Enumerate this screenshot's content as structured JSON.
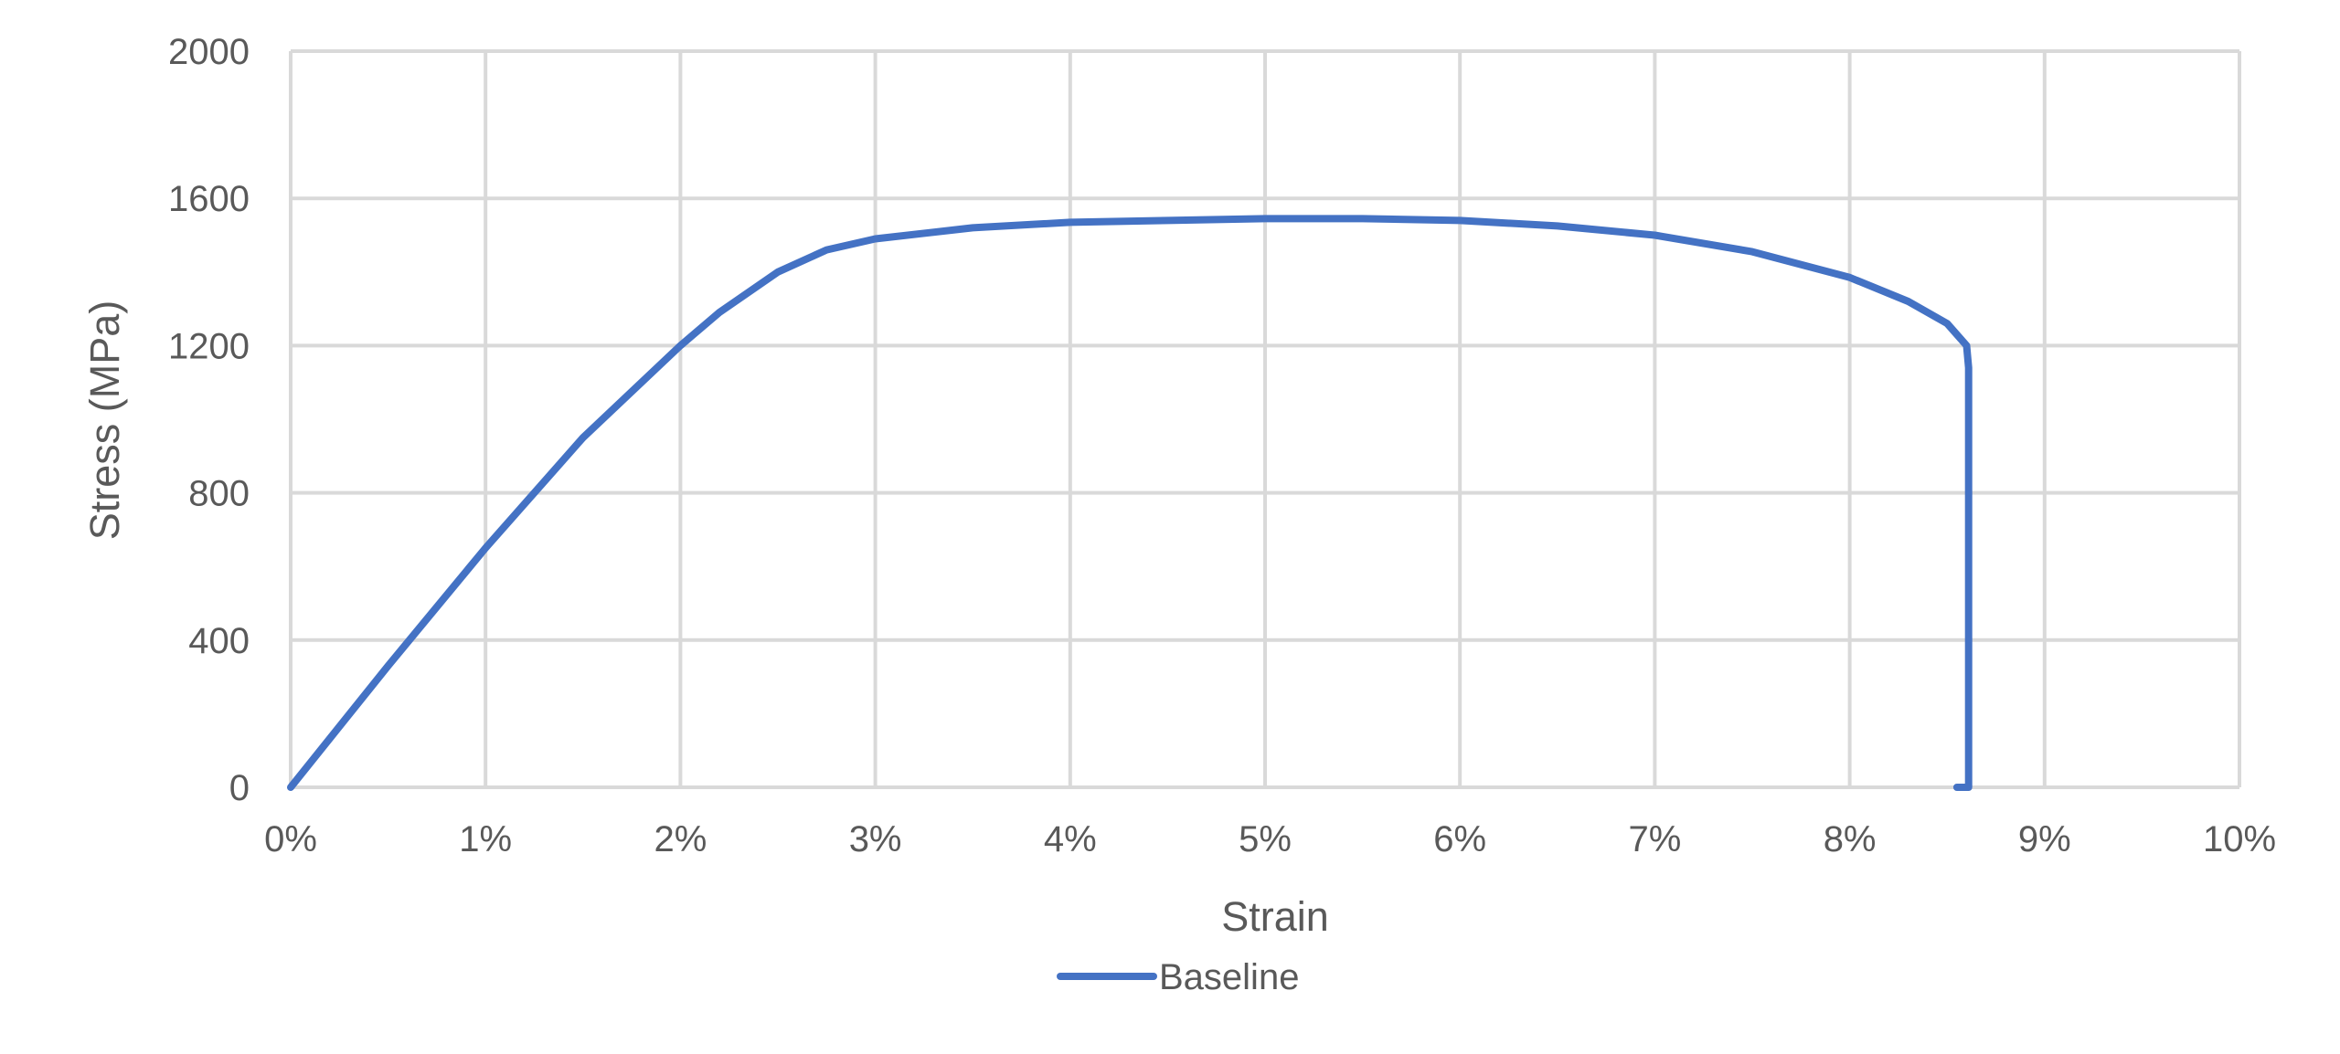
{
  "chart_data": {
    "type": "line",
    "xlabel": "Strain",
    "ylabel": "Stress (MPa)",
    "xlim": [
      0,
      0.1
    ],
    "ylim": [
      0,
      2000
    ],
    "x_ticks": [
      0,
      0.01,
      0.02,
      0.03,
      0.04,
      0.05,
      0.06,
      0.07,
      0.08,
      0.09,
      0.1
    ],
    "x_tick_labels": [
      "0%",
      "1%",
      "2%",
      "3%",
      "4%",
      "5%",
      "6%",
      "7%",
      "8%",
      "9%",
      "10%"
    ],
    "y_ticks": [
      0,
      400,
      800,
      1200,
      1600,
      2000
    ],
    "y_tick_labels": [
      "0",
      "400",
      "800",
      "1200",
      "1600",
      "2000"
    ],
    "grid": true,
    "legend_position": "bottom",
    "series": [
      {
        "name": "Baseline",
        "color": "#4472c4",
        "x": [
          0,
          0.005,
          0.01,
          0.015,
          0.02,
          0.022,
          0.025,
          0.0275,
          0.03,
          0.035,
          0.04,
          0.045,
          0.05,
          0.055,
          0.06,
          0.065,
          0.07,
          0.075,
          0.08,
          0.083,
          0.085,
          0.086,
          0.0861,
          0.0861,
          0.086,
          0.0855
        ],
        "y": [
          0,
          330,
          650,
          950,
          1200,
          1290,
          1400,
          1460,
          1490,
          1520,
          1535,
          1540,
          1545,
          1545,
          1540,
          1525,
          1500,
          1455,
          1385,
          1320,
          1260,
          1200,
          1140,
          0,
          0,
          0
        ]
      }
    ]
  }
}
